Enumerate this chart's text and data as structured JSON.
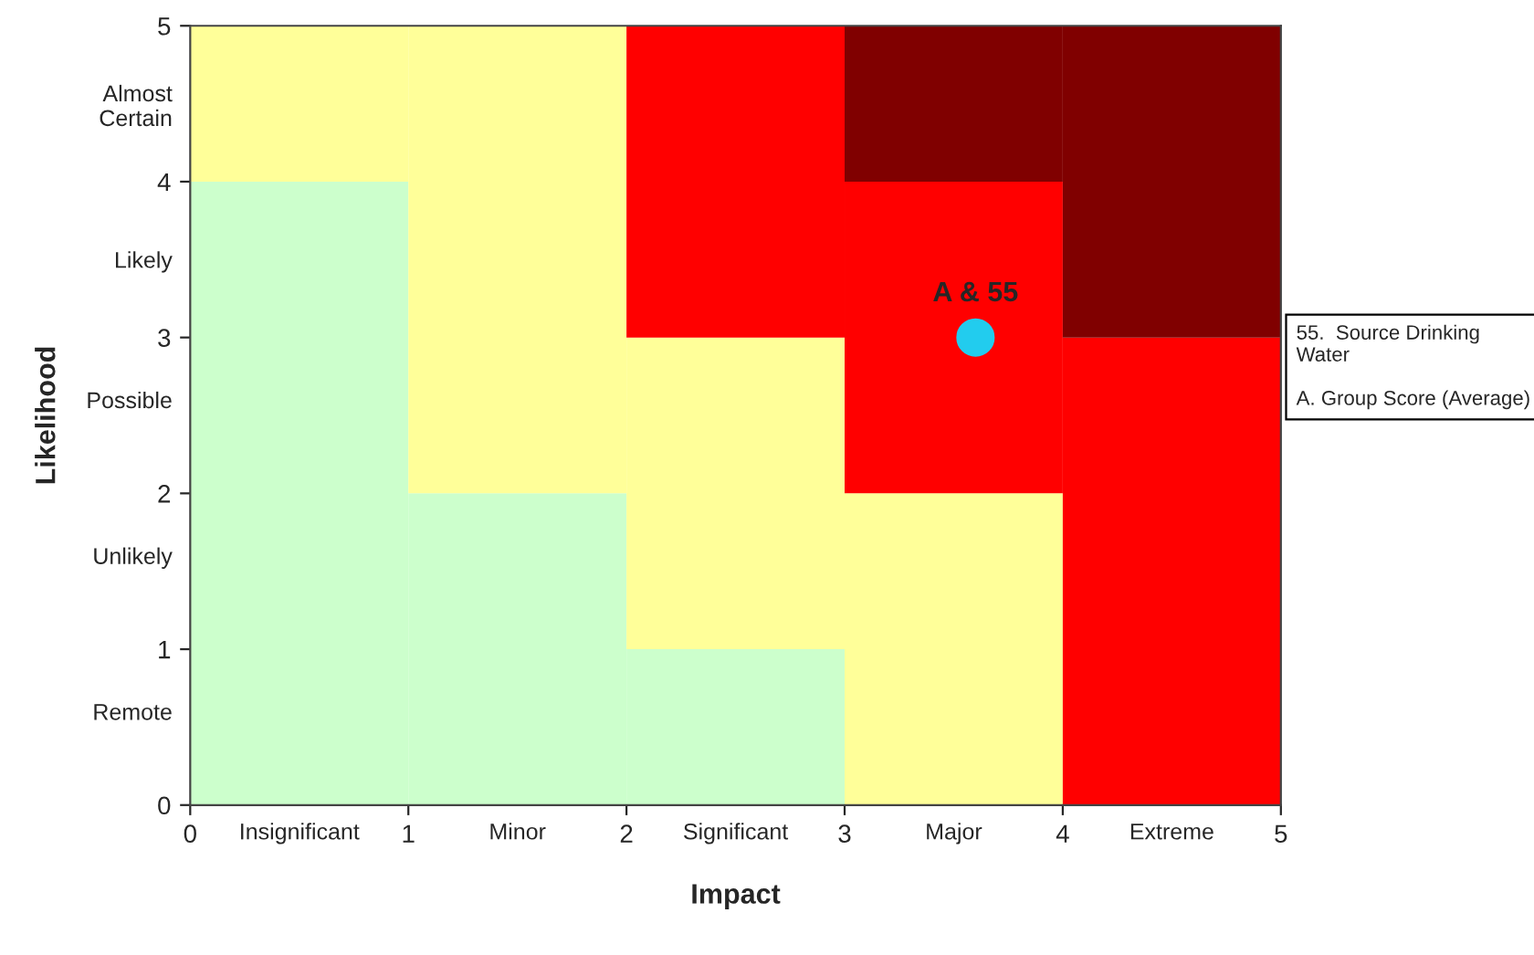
{
  "chart_data": {
    "type": "bar",
    "stacked": true,
    "xlabel": "Impact",
    "ylabel": "Likelihood",
    "x": [
      0.5,
      1.5,
      2.5,
      3.5,
      4.5
    ],
    "series": [
      {
        "color": "#ccffcc",
        "values": [
          4,
          2,
          1,
          0,
          0
        ]
      },
      {
        "color": "#ffff99",
        "values": [
          1,
          3,
          2,
          2,
          0
        ]
      },
      {
        "color": "#ff0000",
        "values": [
          0,
          0,
          2,
          2,
          3
        ]
      },
      {
        "color": "#800000",
        "values": [
          0,
          0,
          0,
          1,
          2
        ]
      },
      {
        "type": "scatter",
        "color": "#22ccee",
        "x": [
          3.6
        ],
        "values": [
          3.0
        ]
      }
    ],
    "marker": "circle",
    "grid": false,
    "legend": false,
    "xlim": [
      0,
      5
    ],
    "ylim": [
      0,
      5
    ],
    "xticks": [
      0,
      {
        "value": 0.5,
        "label": "Insignificant"
      },
      1,
      {
        "value": 1.5,
        "label": "Minor"
      },
      2,
      {
        "value": 2.5,
        "label": "Significant"
      },
      3,
      {
        "value": 3.5,
        "label": "Major"
      },
      4,
      {
        "value": 4.5,
        "label": "Extreme"
      },
      5
    ],
    "yticks": [
      0,
      {
        "value": 0.6,
        "label": "Remote"
      },
      1,
      {
        "value": 1.6,
        "label": "Unlikely"
      },
      2,
      {
        "value": 2.6,
        "label": "Possible"
      },
      3,
      {
        "value": 3.5,
        "label": "Likely"
      },
      4,
      {
        "value": 4.5,
        "label": "Almost\nCertain"
      },
      5
    ],
    "annotations": [
      {
        "text": "A & 55",
        "x": 3.6,
        "y": 3.0
      },
      "55.  Source Drinking Water\n\nA. Group Score (Average)"
    ]
  }
}
